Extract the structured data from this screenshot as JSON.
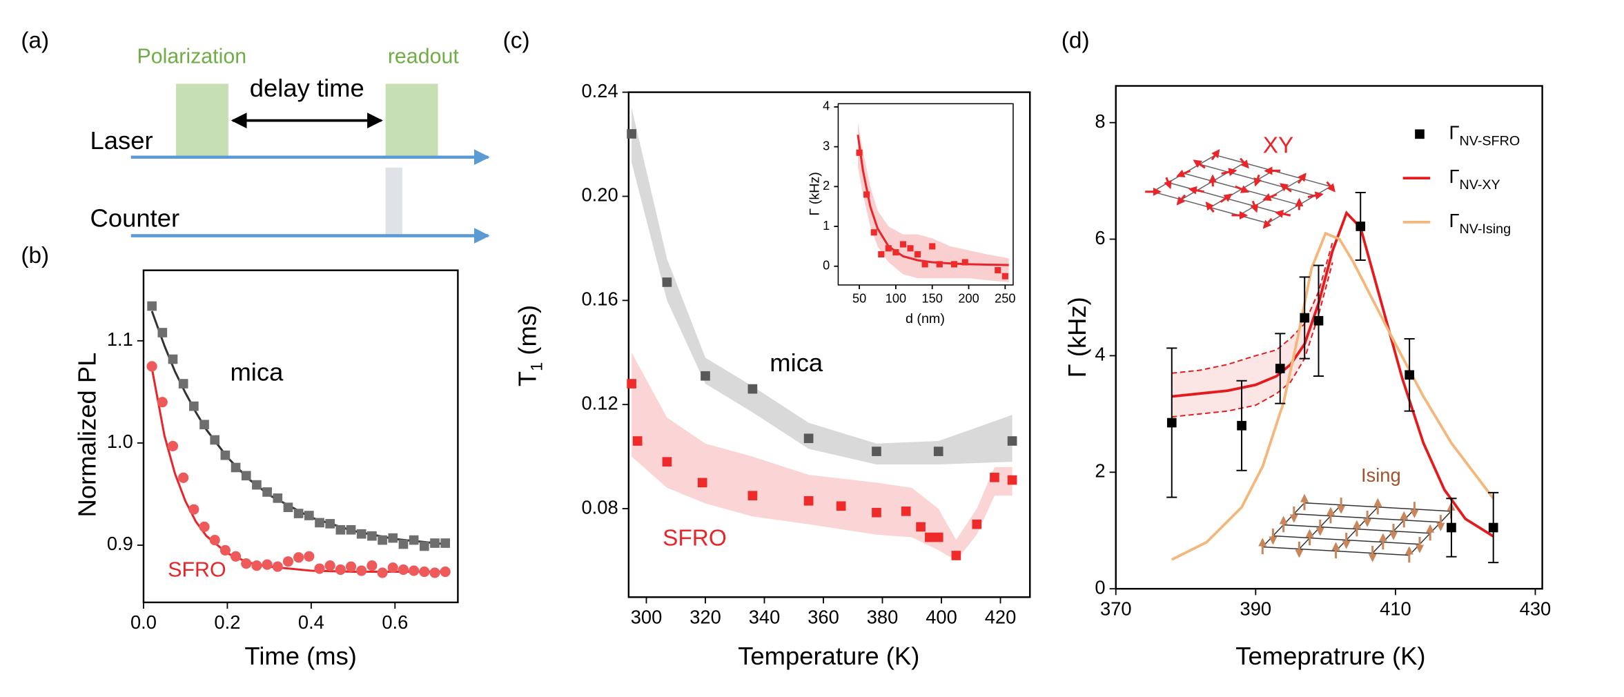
{
  "panel_labels": [
    "(a)",
    "(b)",
    "(c)",
    "(d)"
  ],
  "timing_diagram": {
    "polarization": "Polarization",
    "readout": "readout",
    "delay": "delay time",
    "laser": "Laser",
    "counter": "Counter"
  },
  "chart_data": [
    {
      "type": "scatter",
      "xlabel": "Time (ms)",
      "ylabel": "Normalized PL",
      "xlim": [
        0,
        0.75
      ],
      "ylim": [
        0.844,
        1.169
      ],
      "xticks": [
        {
          "value": 0,
          "label": "0.0"
        },
        0.2,
        0.4,
        0.6
      ],
      "yticks": [
        0.9,
        {
          "value": 1,
          "label": "1.0"
        },
        1.1
      ],
      "x": [
        0.02,
        0.045,
        0.07,
        0.095,
        0.12,
        0.145,
        0.17,
        0.195,
        0.22,
        0.245,
        0.27,
        0.295,
        0.32,
        0.345,
        0.37,
        0.395,
        0.42,
        0.445,
        0.47,
        0.495,
        0.52,
        0.545,
        0.57,
        0.595,
        0.62,
        0.645,
        0.67,
        0.695,
        0.72
      ],
      "series": [
        {
          "name": "mica",
          "color": "#6e6e6e",
          "fit_color": "#333333",
          "label_color": "#000000",
          "marker": "square",
          "values": [
            1.134,
            1.108,
            1.082,
            1.058,
            1.036,
            1.018,
            1.003,
            0.988,
            0.976,
            0.968,
            0.959,
            0.952,
            0.946,
            0.937,
            0.931,
            0.929,
            0.922,
            0.921,
            0.915,
            0.915,
            0.911,
            0.909,
            0.905,
            0.907,
            0.901,
            0.905,
            0.899,
            0.902,
            0.902
          ],
          "fit": {
            "x": [
              0.02,
              0.05,
              0.075,
              0.1,
              0.125,
              0.15,
              0.2,
              0.25,
              0.3,
              0.4,
              0.5,
              0.6,
              0.72
            ],
            "values": [
              1.129,
              1.095,
              1.07,
              1.049,
              1.03,
              1.013,
              0.986,
              0.965,
              0.949,
              0.927,
              0.914,
              0.906,
              0.901
            ]
          }
        },
        {
          "name": "SFRO",
          "color": "#ee5a5a",
          "fit_color": "#e8262a",
          "label_color": "#e8262a",
          "marker": "circle",
          "values": [
            1.075,
            1.04,
            0.997,
            0.966,
            0.935,
            0.918,
            0.905,
            0.895,
            0.889,
            0.882,
            0.88,
            0.881,
            0.879,
            0.884,
            0.888,
            0.889,
            0.877,
            0.88,
            0.876,
            0.879,
            0.875,
            0.88,
            0.873,
            0.878,
            0.876,
            0.875,
            0.874,
            0.873,
            0.874
          ],
          "fit": {
            "x": [
              0.02,
              0.05,
              0.075,
              0.1,
              0.125,
              0.15,
              0.2,
              0.25,
              0.3,
              0.4,
              0.5,
              0.6,
              0.72
            ],
            "values": [
              1.073,
              1.007,
              0.97,
              0.943,
              0.923,
              0.909,
              0.892,
              0.883,
              0.879,
              0.875,
              0.874,
              0.874,
              0.874
            ]
          }
        }
      ]
    },
    {
      "type": "scatter",
      "xlabel": "Temperature (K)",
      "ylabel_parts": [
        {
          "text": "T"
        },
        {
          "text": "1",
          "sub": true
        },
        {
          "text": " (ms)"
        }
      ],
      "xlim": [
        294,
        430
      ],
      "ylim": [
        0.046,
        0.24
      ],
      "xticks": [
        300,
        320,
        340,
        360,
        380,
        400,
        420
      ],
      "yticks": [
        0.08,
        0.12,
        0.16,
        {
          "value": 0.2,
          "label": "0.20"
        },
        0.24
      ],
      "series": [
        {
          "name": "mica",
          "color": "#595959",
          "label_color": "#000000",
          "marker": "square",
          "band_color": "#d9d9d9",
          "x": [
            295,
            307,
            320,
            336,
            355,
            378,
            399,
            424
          ],
          "values": [
            0.224,
            0.167,
            0.131,
            0.126,
            0.107,
            0.102,
            0.102,
            0.106
          ],
          "band": {
            "x": [
              295,
              307,
              320,
              336,
              355,
              378,
              399,
              424
            ],
            "low": [
              0.213,
              0.16,
              0.128,
              0.117,
              0.103,
              0.097,
              0.097,
              0.098
            ],
            "high": [
              0.234,
              0.176,
              0.138,
              0.127,
              0.113,
              0.105,
              0.106,
              0.116
            ]
          }
        },
        {
          "name": "SFRO",
          "color": "#ee2a2a",
          "label_color": "#e8262a",
          "marker": "square",
          "band_color": "#fbd5d5",
          "x": [
            295,
            297,
            307,
            319,
            336,
            355,
            366,
            378,
            388,
            393,
            396,
            399,
            405,
            412,
            418,
            424
          ],
          "values": [
            0.128,
            0.106,
            0.098,
            0.09,
            0.085,
            0.083,
            0.081,
            0.0785,
            0.079,
            0.073,
            0.069,
            0.069,
            0.062,
            0.074,
            0.092,
            0.091
          ],
          "band": {
            "x": [
              295,
              307,
              320,
              336,
              355,
              378,
              390,
              399,
              405,
              412,
              418,
              424
            ],
            "low": [
              0.1,
              0.088,
              0.082,
              0.077,
              0.074,
              0.07,
              0.069,
              0.064,
              0.06,
              0.07,
              0.085,
              0.085
            ],
            "high": [
              0.14,
              0.115,
              0.105,
              0.1,
              0.093,
              0.09,
              0.088,
              0.08,
              0.068,
              0.08,
              0.096,
              0.096
            ]
          }
        }
      ]
    },
    {
      "type": "scatter",
      "xlabel": "d (nm)",
      "ylabel": "Γ (kHz)",
      "xlim": [
        21,
        261
      ],
      "ylim": [
        -0.47,
        4.08
      ],
      "xticks": [
        50,
        100,
        150,
        200,
        250
      ],
      "yticks": [
        0,
        1,
        2,
        3,
        4
      ],
      "series": [
        {
          "color": "#ee2a2a",
          "fit_color": "#e8262a",
          "marker": "square",
          "band_color": "#f9cfcf",
          "x": [
            50,
            60,
            70,
            80,
            90,
            100,
            110,
            120,
            130,
            140,
            150,
            160,
            180,
            195,
            240,
            250
          ],
          "values": [
            2.85,
            1.8,
            0.85,
            0.3,
            0.45,
            0.35,
            0.55,
            0.45,
            0.3,
            0.05,
            0.5,
            0.05,
            0.05,
            0.1,
            -0.1,
            -0.25
          ],
          "fit": {
            "x": [
              48,
              55,
              65,
              75,
              90,
              110,
              130,
              150,
              175,
              200,
              225,
              255
            ],
            "values": [
              3.3,
              2.4,
              1.5,
              0.95,
              0.5,
              0.25,
              0.15,
              0.1,
              0.07,
              0.05,
              0.04,
              0.03
            ]
          },
          "band": {
            "x": [
              48,
              55,
              65,
              75,
              90,
              110,
              130,
              150,
              175,
              200,
              225,
              255
            ],
            "low": [
              2.5,
              1.8,
              1,
              0.5,
              0.1,
              -0.2,
              -0.3,
              -0.3,
              -0.3,
              -0.3,
              -0.35,
              -0.4
            ],
            "high": [
              3.6,
              2.9,
              2,
              1.4,
              1,
              0.8,
              0.8,
              0.7,
              0.5,
              0.4,
              0.3,
              0.2
            ]
          }
        }
      ]
    },
    {
      "type": "scatter",
      "xlabel": "Temepratrure (K)",
      "ylabel": "Γ (kHz)",
      "xlim": [
        370,
        431
      ],
      "ylim": [
        0,
        8.63
      ],
      "xticks": [
        370,
        390,
        410,
        430
      ],
      "yticks": [
        0,
        2,
        4,
        6,
        8
      ],
      "annotations": [
        {
          "text": "XY",
          "color": "#e8262a"
        },
        {
          "text": "Ising",
          "color": "#a0522d"
        }
      ],
      "series": [
        {
          "name": "Γ",
          "subscript": "NV-SFRO",
          "color": "#000000",
          "marker": "square",
          "x": [
            378,
            388,
            393.5,
            397,
            399,
            405,
            412,
            418,
            424
          ],
          "values": [
            2.85,
            2.8,
            3.78,
            4.65,
            4.6,
            6.22,
            3.67,
            1.05,
            1.05
          ],
          "errors": [
            1.28,
            0.77,
            0.6,
            0.7,
            0.95,
            0.58,
            0.62,
            0.5,
            0.6
          ]
        },
        {
          "name": "Γ",
          "subscript": "NV-XY",
          "color": "#e41a1c",
          "band_color": "#fbdede",
          "band_style": "dashed",
          "x": [
            378,
            382,
            386,
            390,
            393,
            395,
            397,
            399,
            401,
            403,
            405,
            408,
            411,
            414,
            417,
            420,
            424
          ],
          "values": [
            3.3,
            3.35,
            3.4,
            3.5,
            3.65,
            3.85,
            4.2,
            4.9,
            5.8,
            6.45,
            6.2,
            4.9,
            3.6,
            2.5,
            1.7,
            1.2,
            0.9
          ],
          "band": {
            "x": [
              378,
              382,
              386,
              390,
              393,
              395,
              397,
              399,
              401
            ],
            "low": [
              2.95,
              3,
              3.05,
              3.15,
              3.35,
              3.55,
              3.95,
              4.7,
              5.6
            ],
            "high": [
              3.7,
              3.75,
              3.85,
              4,
              4.1,
              4.3,
              4.55,
              5.1,
              5.95
            ]
          }
        },
        {
          "name": "Γ",
          "subscript": "NV-Ising",
          "color": "#f4b67a",
          "x": [
            378,
            383,
            388,
            391,
            394,
            396,
            398,
            400,
            402,
            404,
            407,
            410,
            414,
            418,
            424
          ],
          "values": [
            0.5,
            0.8,
            1.4,
            2.1,
            3.2,
            4.3,
            5.5,
            6.1,
            6,
            5.6,
            4.9,
            4.2,
            3.3,
            2.5,
            1.55
          ]
        }
      ]
    }
  ]
}
